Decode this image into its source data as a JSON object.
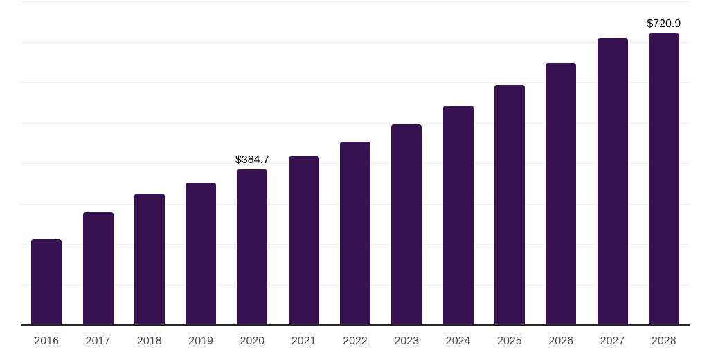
{
  "chart_data": {
    "type": "bar",
    "title": "",
    "xlabel": "",
    "ylabel": "",
    "categories": [
      "2016",
      "2017",
      "2018",
      "2019",
      "2020",
      "2021",
      "2022",
      "2023",
      "2024",
      "2025",
      "2026",
      "2027",
      "2028"
    ],
    "values": [
      211.9,
      278.6,
      324.2,
      352.6,
      384.7,
      417.0,
      452.4,
      495.1,
      542.3,
      592.5,
      647.8,
      709.3,
      720.9
    ],
    "data_labels": {
      "2020": "$384.7",
      "2028": "$720.9"
    },
    "ylim": [
      0,
      800
    ],
    "gridline_interval": 100,
    "grid": true,
    "legend": false
  },
  "colors": {
    "bar": "#371150",
    "gridline": "#f2f2f2",
    "axis_line": "#262626",
    "tick_label": "#4d4d4d",
    "data_label": "#000000",
    "background": "#ffffff"
  }
}
